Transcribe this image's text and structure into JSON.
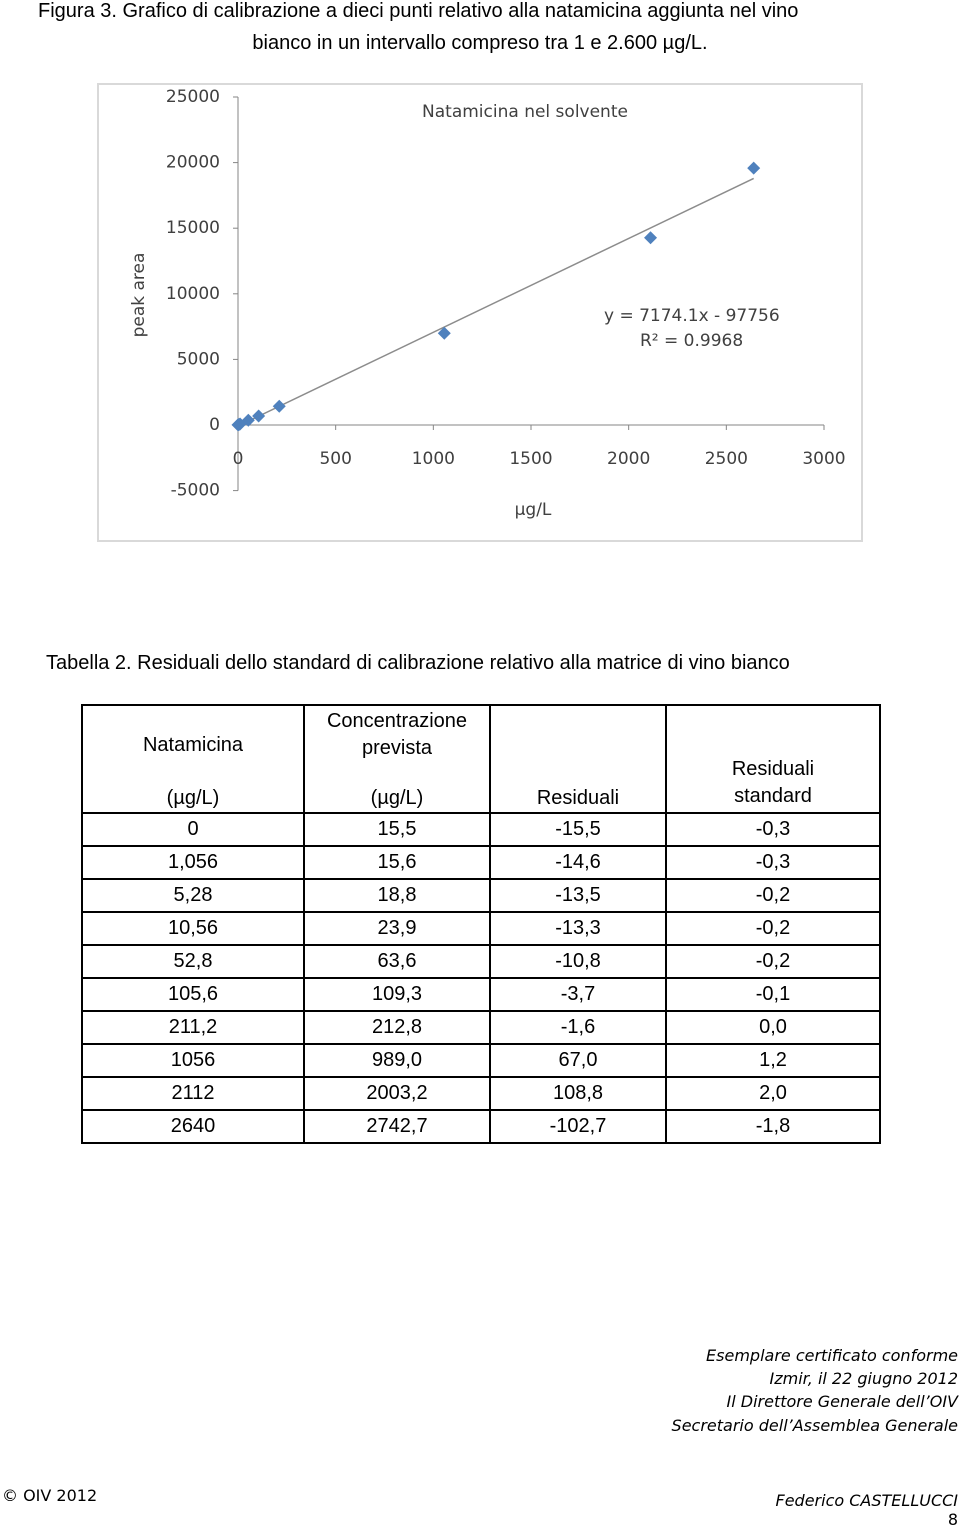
{
  "figure_caption": [
    "Figura 3. Grafico di calibrazione a dieci punti relativo alla natamicina aggiunta nel vino",
    "bianco in un intervallo compreso tra 1 e 2.600 µg/L."
  ],
  "chart_data": {
    "type": "scatter",
    "title": "Natamicina nel solvente",
    "x_label": "µg/L",
    "y_label": "peak area",
    "annotations": [
      "y = 7174.1x - 97756",
      "R² = 0.9968"
    ],
    "x": [
      0,
      1.056,
      5.28,
      10.56,
      52.8,
      105.6,
      211.2,
      1056,
      2112,
      2640
    ],
    "series": [
      {
        "name": "Natamicina nel solvente",
        "color": "#4f81bd",
        "values": [
          13,
          14,
          37,
          74,
          358,
          686,
          1429,
          6997,
          14273,
          19579
        ]
      }
    ],
    "trendline": true,
    "trendline_color": "#8c8c8c",
    "xlim": [
      0,
      3000
    ],
    "xticks": [
      0,
      500,
      1000,
      1500,
      2000,
      2500,
      3000
    ],
    "ylim": [
      -5000,
      25000
    ],
    "yticks": [
      -5000,
      0,
      5000,
      10000,
      15000,
      20000,
      25000
    ],
    "grid": false
  },
  "table_caption": "Tabella 2. Residuali dello standard di calibrazione relativo alla matrice di vino bianco",
  "table": {
    "header": [
      [
        "Natamicina",
        "(µg/L)"
      ],
      [
        "Concentrazione prevista",
        "(µg/L)"
      ],
      [
        "Residuali"
      ],
      [
        "Residuali standard"
      ]
    ],
    "rows": [
      [
        "0",
        "15,5",
        "-15,5",
        "-0,3"
      ],
      [
        "1,056",
        "15,6",
        "-14,6",
        "-0,3"
      ],
      [
        "5,28",
        "18,8",
        "-13,5",
        "-0,2"
      ],
      [
        "10,56",
        "23,9",
        "-13,3",
        "-0,2"
      ],
      [
        "52,8",
        "63,6",
        "-10,8",
        "-0,2"
      ],
      [
        "105,6",
        "109,3",
        "-3,7",
        "-0,1"
      ],
      [
        "211,2",
        "212,8",
        "-1,6",
        "0,0"
      ],
      [
        "1056",
        "989,0",
        "67,0",
        "1,2"
      ],
      [
        "2112",
        "2003,2",
        "108,8",
        "2,0"
      ],
      [
        "2640",
        "2742,7",
        "-102,7",
        "-1,8"
      ]
    ]
  },
  "footer": {
    "certification": [
      "Esemplare certificato conforme",
      "Izmir, il 22 giugno 2012",
      "Il Direttore Generale dell’OIV",
      "Secretario dell’Assemblea Generale"
    ],
    "signature": "Federico CASTELLUCCI",
    "copyright": "© OIV 2012",
    "page": "8"
  }
}
